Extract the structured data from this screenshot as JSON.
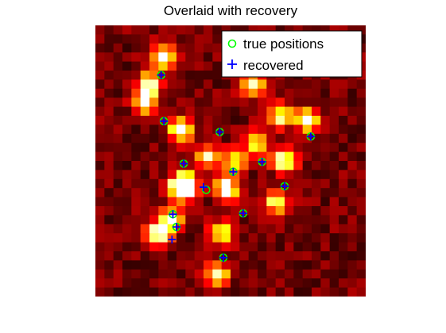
{
  "chart_data": {
    "type": "heatmap",
    "title": "Overlaid with recovery",
    "grid_size": [
      30,
      30
    ],
    "colormap": "hot",
    "axes_visible": false,
    "legend": {
      "location": "top-right",
      "entries": [
        {
          "label": "true positions",
          "marker": "circle",
          "color": "#00ff00"
        },
        {
          "label": "recovered",
          "marker": "plus",
          "color": "#0000ff"
        }
      ]
    },
    "heatmap_hotspots": [
      {
        "col": 7.5,
        "row": 3.5,
        "value": 0.85
      },
      {
        "col": 6,
        "row": 6.5,
        "value": 0.8
      },
      {
        "col": 5.5,
        "row": 8.5,
        "value": 0.75
      },
      {
        "col": 9.5,
        "row": 11.5,
        "value": 0.95
      },
      {
        "col": 10,
        "row": 17.5,
        "value": 1.0
      },
      {
        "col": 9.5,
        "row": 18,
        "value": 0.9
      },
      {
        "col": 14.5,
        "row": 18,
        "value": 0.95
      },
      {
        "col": 8.5,
        "row": 21.5,
        "value": 0.85
      },
      {
        "col": 7,
        "row": 23,
        "value": 0.9
      },
      {
        "col": 14,
        "row": 23,
        "value": 0.75
      },
      {
        "col": 13.5,
        "row": 27.5,
        "value": 0.75
      },
      {
        "col": 17.5,
        "row": 6.5,
        "value": 0.8
      },
      {
        "col": 20.5,
        "row": 10,
        "value": 0.75
      },
      {
        "col": 21,
        "row": 15,
        "value": 0.9
      },
      {
        "col": 18,
        "row": 13,
        "value": 0.7
      },
      {
        "col": 23.5,
        "row": 10.5,
        "value": 0.8
      },
      {
        "col": 20,
        "row": 19.5,
        "value": 0.75
      },
      {
        "col": 15.5,
        "row": 15,
        "value": 0.65
      },
      {
        "col": 12.5,
        "row": 14.5,
        "value": 0.7
      }
    ],
    "true_positions": [
      [
        7.3,
        5.5
      ],
      [
        7.6,
        10.6
      ],
      [
        13.8,
        11.8
      ],
      [
        9.8,
        15.3
      ],
      [
        15.3,
        16.2
      ],
      [
        18.5,
        15.1
      ],
      [
        12.3,
        18.2
      ],
      [
        21.0,
        17.8
      ],
      [
        8.6,
        20.9
      ],
      [
        16.4,
        20.8
      ],
      [
        9.0,
        22.3
      ],
      [
        14.2,
        25.7
      ],
      [
        23.9,
        12.3
      ],
      [
        17.7,
        5.3
      ]
    ],
    "recovered": [
      [
        7.3,
        5.5
      ],
      [
        7.6,
        10.6
      ],
      [
        13.8,
        11.8
      ],
      [
        9.8,
        15.3
      ],
      [
        15.3,
        16.2
      ],
      [
        18.5,
        15.1
      ],
      [
        12.0,
        17.9
      ],
      [
        21.0,
        17.8
      ],
      [
        8.6,
        20.9
      ],
      [
        16.4,
        20.8
      ],
      [
        9.0,
        22.3
      ],
      [
        8.5,
        23.7
      ],
      [
        14.2,
        25.7
      ],
      [
        23.9,
        12.3
      ],
      [
        17.7,
        5.3
      ]
    ]
  }
}
